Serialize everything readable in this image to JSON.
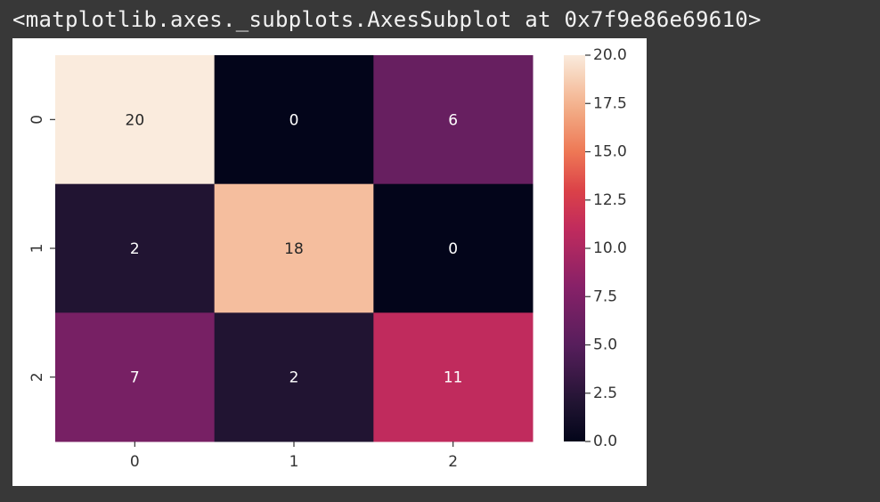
{
  "output": {
    "repr": "<matplotlib.axes._subplots.AxesSubplot at 0x7f9e86e69610>"
  },
  "chart_data": {
    "type": "heatmap",
    "x_categories": [
      "0",
      "1",
      "2"
    ],
    "y_categories": [
      "0",
      "1",
      "2"
    ],
    "values": [
      [
        20,
        0,
        6
      ],
      [
        2,
        18,
        0
      ],
      [
        7,
        2,
        11
      ]
    ],
    "annotations": [
      [
        "20",
        "0",
        "6"
      ],
      [
        "2",
        "18",
        "0"
      ],
      [
        "7",
        "2",
        "11"
      ]
    ],
    "vmin": 0,
    "vmax": 20,
    "colorbar_ticks": [
      "0.0",
      "2.5",
      "5.0",
      "7.5",
      "10.0",
      "12.5",
      "15.0",
      "17.5",
      "20.0"
    ],
    "colormap": "rocket",
    "grid": false,
    "colorbar_position": "right"
  }
}
